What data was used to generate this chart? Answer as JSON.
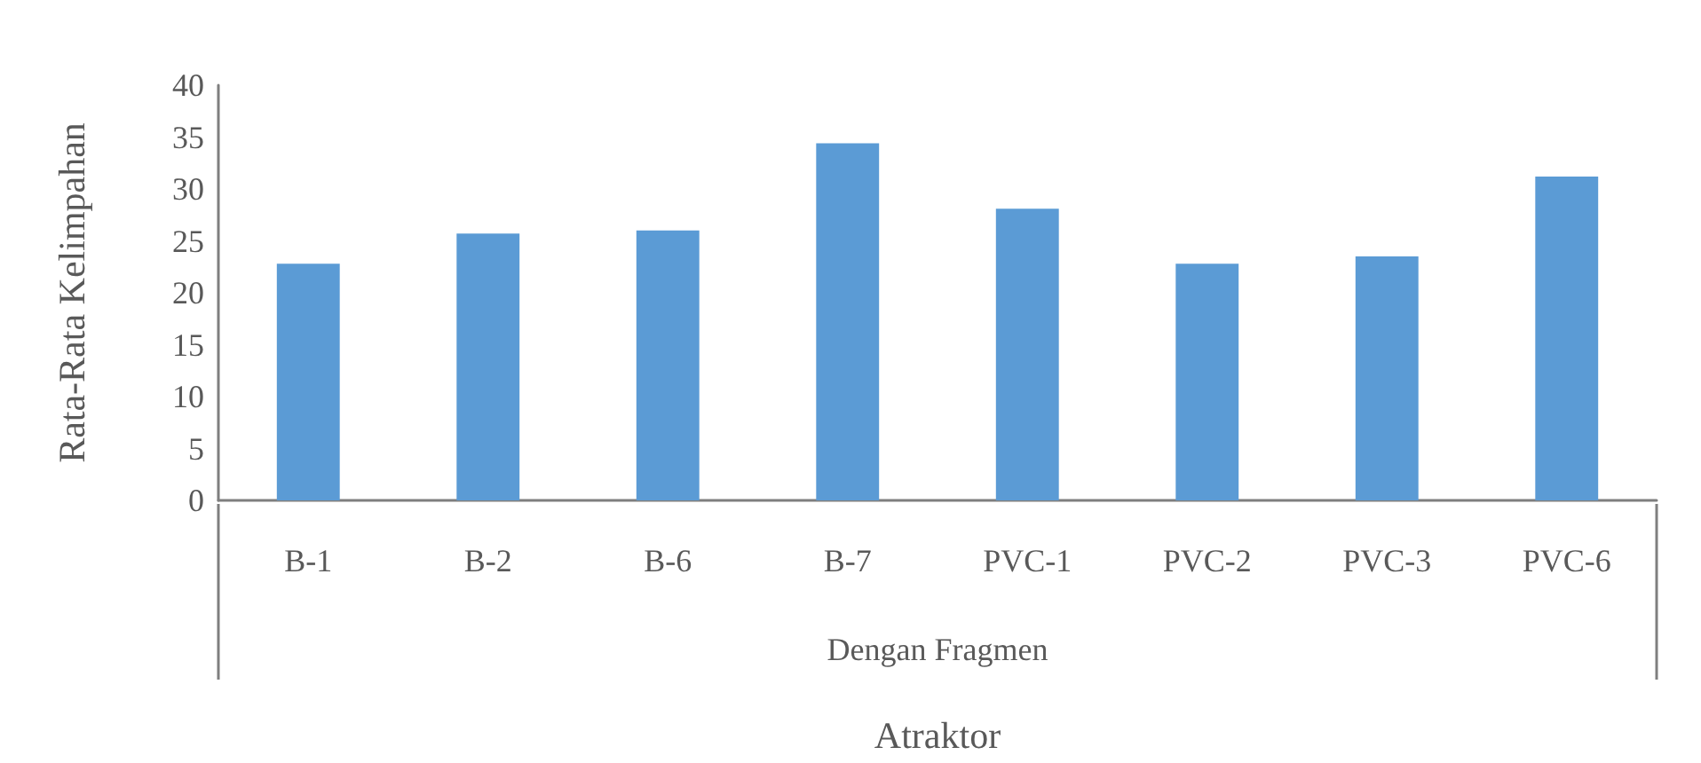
{
  "chart_data": {
    "type": "bar",
    "xlabel": "Atraktor",
    "ylabel": "Rata-Rata Kelimpahan",
    "annotations": [
      "Dengan Fragmen"
    ],
    "categories": [
      "B-1",
      "B-2",
      "B-6",
      "B-7",
      "PVC-1",
      "PVC-2",
      "PVC-3",
      "PVC-6"
    ],
    "values": [
      22.8,
      25.7,
      26.0,
      34.4,
      28.1,
      22.8,
      23.5,
      31.2
    ],
    "color": "#5b9bd5",
    "ylim": [
      0,
      40
    ],
    "yticks": [
      0,
      5,
      10,
      15,
      20,
      25,
      30,
      35,
      40
    ],
    "grid": false
  }
}
